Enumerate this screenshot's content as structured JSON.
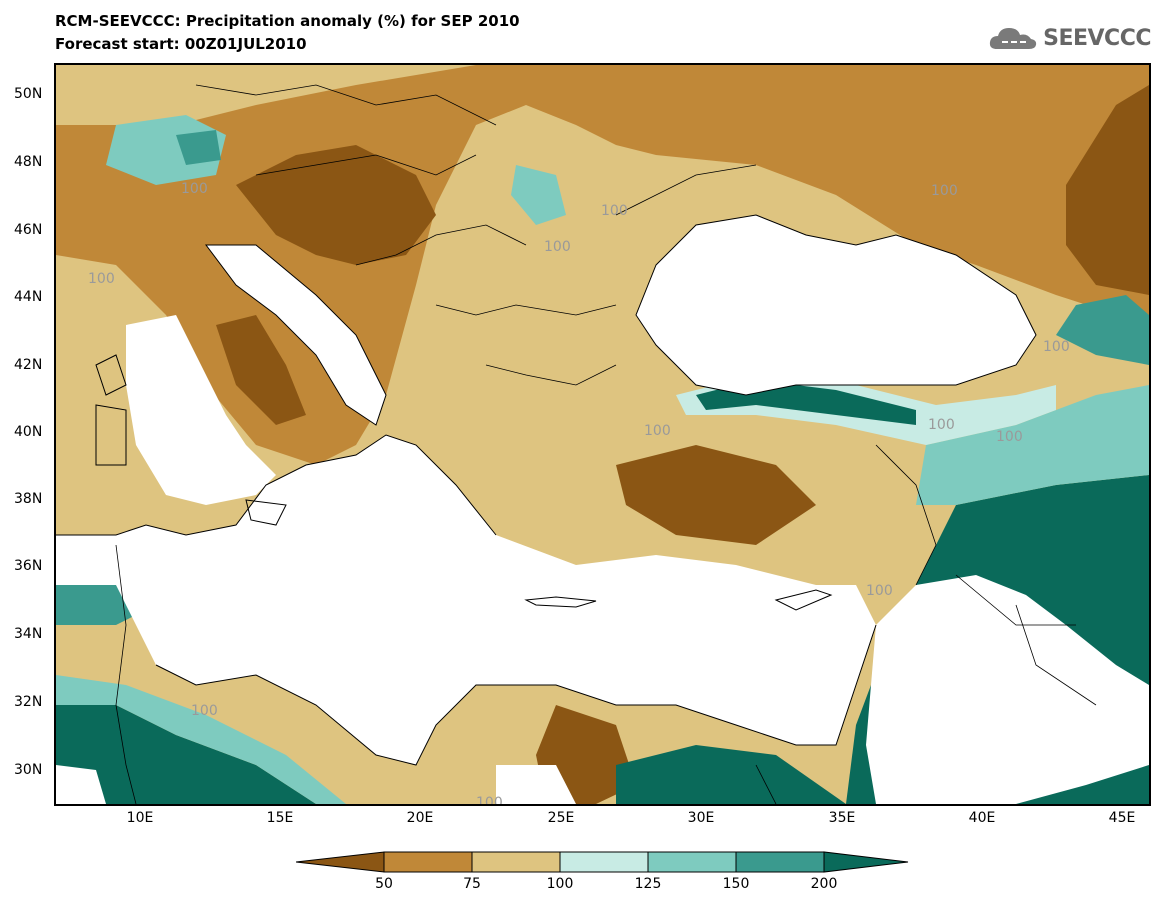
{
  "title_line1": "RCM-SEEVCCC: Precipitation anomaly (%) for SEP 2010",
  "title_line2": "Forecast start: 00Z01JUL2010",
  "logo_text": "SEEVCCC",
  "lat_labels": [
    "50N",
    "48N",
    "46N",
    "44N",
    "42N",
    "40N",
    "38N",
    "36N",
    "34N",
    "32N",
    "30N"
  ],
  "lon_labels": [
    "10E",
    "15E",
    "20E",
    "25E",
    "30E",
    "35E",
    "40E",
    "45E"
  ],
  "contour_labels": [
    "100",
    "100",
    "100",
    "100",
    "100",
    "100",
    "100",
    "100",
    "100",
    "100",
    "100",
    "100"
  ],
  "colorbar": {
    "tick_labels": [
      "50",
      "75",
      "100",
      "125",
      "150",
      "200"
    ],
    "colors": [
      "#8b5614",
      "#c08838",
      "#dec480",
      "#c8ebe4",
      "#7ecbbf",
      "#3a9a8e",
      "#0a6a5a"
    ]
  },
  "colors": {
    "dark_brown": "#8b5614",
    "brown": "#c08838",
    "tan": "#dec480",
    "light_teal": "#c8ebe4",
    "mid_teal": "#7ecbbf",
    "teal": "#3a9a8e",
    "dark_teal": "#0a6a5a"
  }
}
